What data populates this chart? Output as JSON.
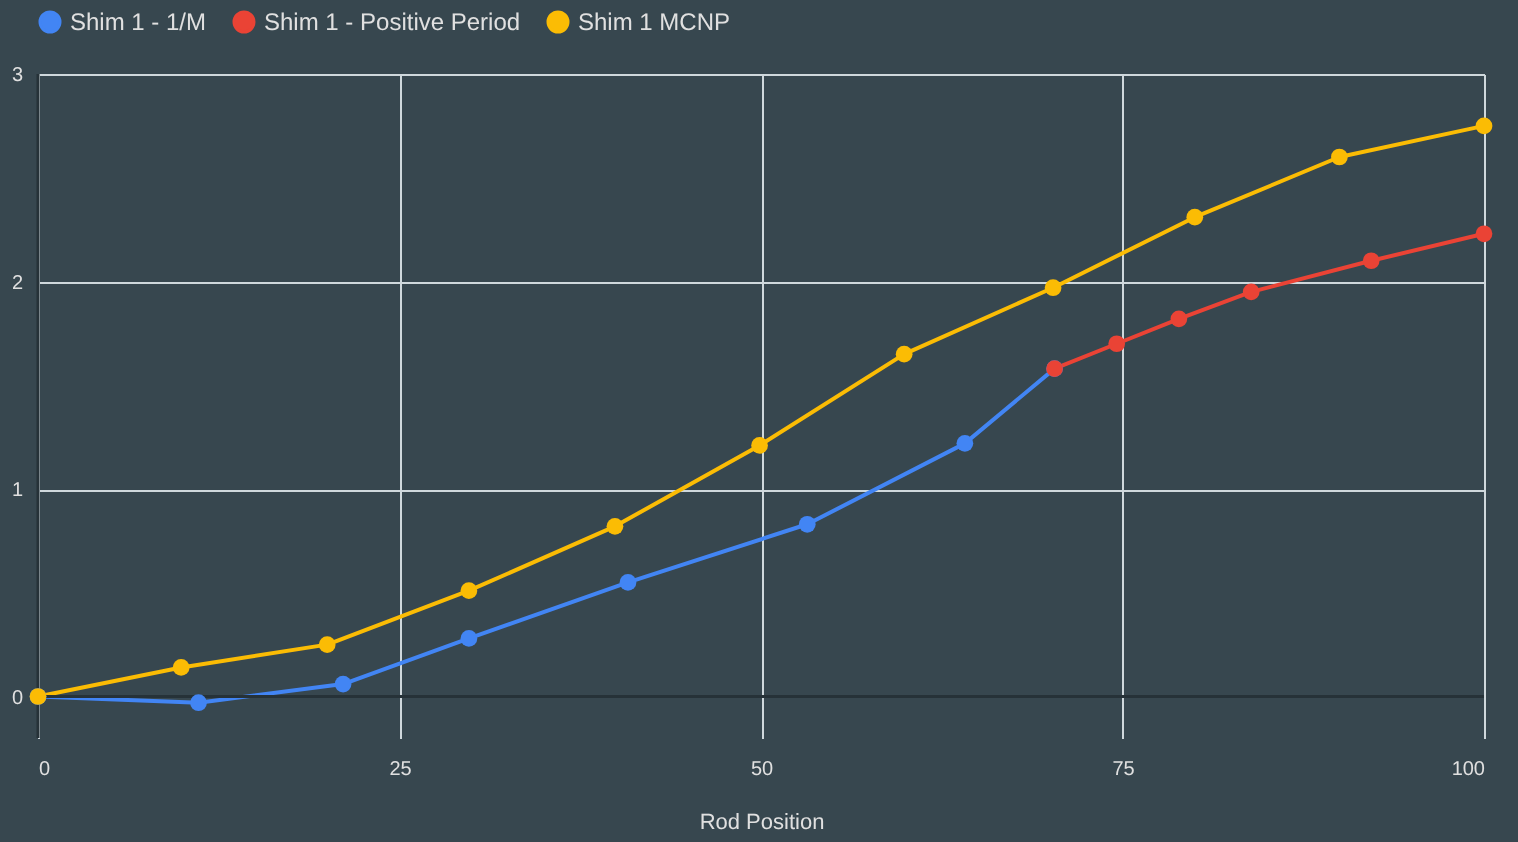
{
  "chart_data": {
    "type": "line",
    "xlabel": "Rod Position",
    "xlim": [
      0,
      100
    ],
    "xticks": [
      0,
      25,
      50,
      75,
      100
    ],
    "ylim": [
      -0.2,
      3
    ],
    "yticks": [
      0,
      1,
      2,
      3
    ],
    "grid": true,
    "legend": "top",
    "marker": "circle",
    "line_style": "solid",
    "series": [
      {
        "name": "Shim 1 - 1/M",
        "color": "#4285f4",
        "x": [
          0,
          11.1,
          21.1,
          29.8,
          40.8,
          53.2,
          64.1,
          70.3
        ],
        "values": [
          0,
          -0.03,
          0.06,
          0.28,
          0.55,
          0.83,
          1.22,
          1.58
        ]
      },
      {
        "name": "Shim 1 - Positive Period",
        "color": "#ea4335",
        "x": [
          70.3,
          74.6,
          78.9,
          83.9,
          92.2,
          100
        ],
        "values": [
          1.58,
          1.7,
          1.82,
          1.95,
          2.1,
          2.23
        ]
      },
      {
        "name": "Shim 1 MCNP",
        "color": "#fbbc04",
        "x": [
          0,
          9.9,
          20,
          29.8,
          39.9,
          49.9,
          59.9,
          70.2,
          80,
          90,
          100
        ],
        "values": [
          0,
          0.14,
          0.25,
          0.51,
          0.82,
          1.21,
          1.65,
          1.97,
          2.31,
          2.6,
          2.75
        ]
      }
    ]
  }
}
